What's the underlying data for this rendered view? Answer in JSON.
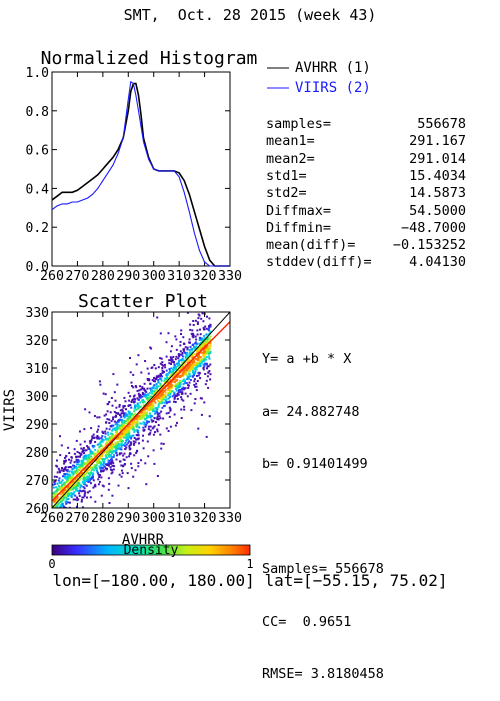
{
  "title": "SMT,  Oct. 28 2015 (week 43)",
  "footer": "lon=[−180.00, 180.00] lat=[−55.15, 75.02]",
  "colors": {
    "avhrr": "#000000",
    "viirs": "#1a1aff",
    "fit_line": "#ff2200",
    "diagonal": "#000000"
  },
  "chart_data": [
    {
      "type": "line",
      "title": "Normalized Histogram",
      "xlim": [
        260,
        330
      ],
      "ylim": [
        0,
        1
      ],
      "xticks": [
        "260",
        "270",
        "280",
        "290",
        "300",
        "310",
        "320",
        "330"
      ],
      "yticks": [
        "0.0",
        "0.2",
        "0.4",
        "0.6",
        "0.8",
        "1.0"
      ],
      "legend_position": "right",
      "series": [
        {
          "name": "AVHRR (1)",
          "color": "#000000",
          "x": [
            260,
            262,
            264,
            266,
            268,
            270,
            272,
            274,
            276,
            278,
            280,
            282,
            284,
            286,
            288,
            290,
            291,
            292,
            293,
            294,
            295,
            296,
            298,
            300,
            302,
            304,
            306,
            308,
            310,
            312,
            314,
            316,
            318,
            320,
            322,
            324,
            326,
            328,
            330
          ],
          "y": [
            0.34,
            0.36,
            0.38,
            0.38,
            0.38,
            0.39,
            0.41,
            0.43,
            0.45,
            0.47,
            0.5,
            0.53,
            0.56,
            0.6,
            0.66,
            0.8,
            0.9,
            0.94,
            0.94,
            0.88,
            0.78,
            0.66,
            0.56,
            0.5,
            0.49,
            0.49,
            0.49,
            0.49,
            0.48,
            0.44,
            0.37,
            0.28,
            0.19,
            0.1,
            0.03,
            0.0,
            0.0,
            0.0,
            0.0
          ]
        },
        {
          "name": "VIIRS (2)",
          "color": "#1a1aff",
          "x": [
            260,
            262,
            264,
            266,
            268,
            270,
            272,
            274,
            276,
            278,
            280,
            282,
            284,
            286,
            288,
            290,
            291,
            292,
            293,
            294,
            296,
            298,
            300,
            302,
            304,
            306,
            308,
            310,
            312,
            314,
            316,
            318,
            320,
            322,
            324,
            326,
            328,
            330
          ],
          "y": [
            0.29,
            0.31,
            0.32,
            0.32,
            0.33,
            0.33,
            0.34,
            0.35,
            0.37,
            0.4,
            0.44,
            0.48,
            0.52,
            0.58,
            0.66,
            0.86,
            0.95,
            0.94,
            0.88,
            0.8,
            0.64,
            0.55,
            0.5,
            0.49,
            0.49,
            0.49,
            0.49,
            0.46,
            0.38,
            0.28,
            0.17,
            0.08,
            0.02,
            0.0,
            0.0,
            0.0,
            0.0,
            0.0
          ]
        }
      ]
    },
    {
      "type": "heatmap",
      "title": "Scatter Plot",
      "xlabel": "AVHRR",
      "ylabel": "VIIRS",
      "xlim": [
        260,
        330
      ],
      "ylim": [
        260,
        330
      ],
      "xticks": [
        "260",
        "270",
        "280",
        "290",
        "300",
        "310",
        "320",
        "330"
      ],
      "yticks": [
        "260",
        "270",
        "280",
        "290",
        "300",
        "310",
        "320",
        "330"
      ],
      "fit": {
        "a": 24.882748,
        "b": 0.91401499
      },
      "colorbar": {
        "label": "Density",
        "min_label": "0",
        "max_label": "1"
      }
    }
  ],
  "stats": [
    {
      "key": "samples=",
      "value": "556678"
    },
    {
      "key": "mean1=",
      "value": "291.167"
    },
    {
      "key": "mean2=",
      "value": "291.014"
    },
    {
      "key": "std1=",
      "value": "15.4034"
    },
    {
      "key": "std2=",
      "value": "14.5873"
    },
    {
      "key": "Diffmax=",
      "value": "54.5000"
    },
    {
      "key": "Diffmin=",
      "value": "−48.7000"
    },
    {
      "key": "mean(diff)=",
      "value": "−0.153252"
    },
    {
      "key": "stddev(diff)=",
      "value": "4.04130"
    }
  ],
  "fit_text": {
    "equation": "Y= a +b * X",
    "a": "a= 24.882748",
    "b": "b= 0.91401499",
    "samples": "Samples= 556678",
    "cc": "CC=  0.9651",
    "rmse": "RMSE= 3.8180458"
  }
}
